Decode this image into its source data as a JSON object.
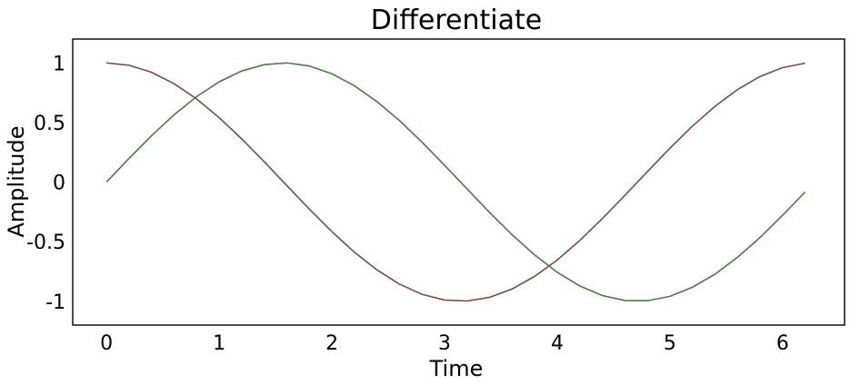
{
  "chart_data": {
    "type": "line",
    "title": "Differentiate",
    "xlabel": "Time",
    "ylabel": "Amplitude",
    "xlim": [
      -0.3,
      6.55
    ],
    "ylim": [
      -1.2,
      1.2
    ],
    "xticks": [
      0,
      1,
      2,
      3,
      4,
      5,
      6
    ],
    "xtick_labels": [
      "0",
      "1",
      "2",
      "3",
      "4",
      "5",
      "6"
    ],
    "yticks": [
      1,
      0.5,
      0,
      -0.5,
      -1
    ],
    "ytick_labels": [
      "1",
      "0.5",
      "0",
      "-0.5",
      "-1"
    ],
    "grid": false,
    "legend": false,
    "x": [
      0.0,
      0.2,
      0.4,
      0.6,
      0.8,
      1.0,
      1.2,
      1.4,
      1.6,
      1.8,
      2.0,
      2.2,
      2.4,
      2.6,
      2.8,
      3.0,
      3.2,
      3.4,
      3.6,
      3.8,
      4.0,
      4.2,
      4.4,
      4.6,
      4.8,
      5.0,
      5.2,
      5.4,
      5.6,
      5.8,
      6.0,
      6.2
    ],
    "series": [
      {
        "color": "#4b7c43",
        "values": [
          0.0,
          0.199,
          0.389,
          0.565,
          0.717,
          0.841,
          0.932,
          0.985,
          1.0,
          0.974,
          0.909,
          0.808,
          0.675,
          0.516,
          0.335,
          0.141,
          -0.058,
          -0.256,
          -0.443,
          -0.612,
          -0.757,
          -0.872,
          -0.952,
          -0.994,
          -0.996,
          -0.959,
          -0.883,
          -0.773,
          -0.631,
          -0.465,
          -0.279,
          -0.083
        ]
      },
      {
        "color": "#7c4b48",
        "values": [
          1.0,
          0.98,
          0.921,
          0.825,
          0.697,
          0.54,
          0.362,
          0.17,
          -0.029,
          -0.227,
          -0.416,
          -0.589,
          -0.737,
          -0.857,
          -0.942,
          -0.99,
          -0.998,
          -0.967,
          -0.897,
          -0.791,
          -0.654,
          -0.49,
          -0.307,
          -0.112,
          0.087,
          0.284,
          0.469,
          0.635,
          0.776,
          0.886,
          0.96,
          0.997
        ]
      }
    ]
  }
}
